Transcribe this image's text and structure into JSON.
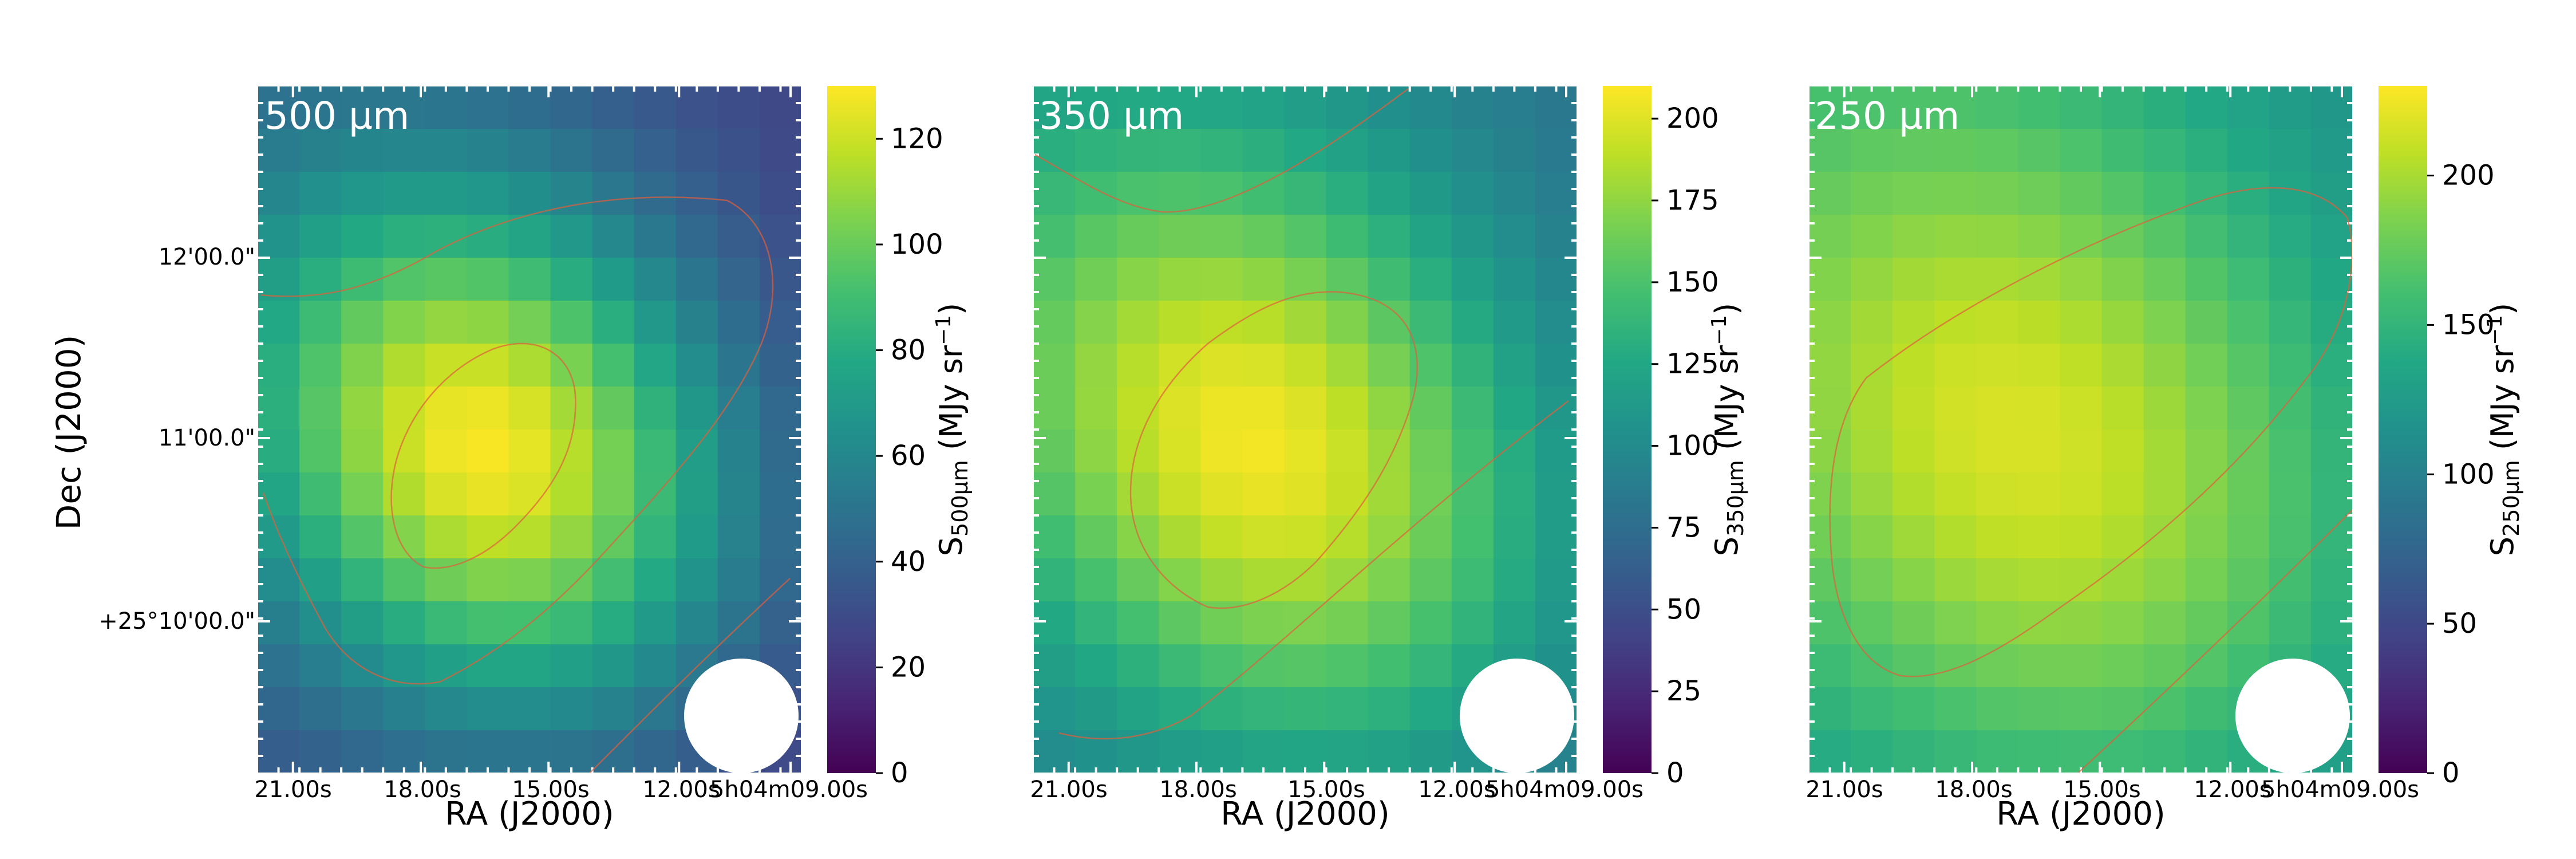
{
  "figure": {
    "ylabel": "Dec (J2000)",
    "xlabel": "RA (J2000)",
    "ra_ticks": [
      "21.00s",
      "18.00s",
      "15.00s",
      "12.00s",
      "5h04m09.00s"
    ],
    "dec_ticks": [
      "12'00.0\"",
      "11'00.0\"",
      "+25°10'00.0\""
    ]
  },
  "chart_data": [
    {
      "type": "heatmap",
      "title": "500 µm",
      "colorbar_label": "S",
      "colorbar_sub": "500µm",
      "colorbar_unit_pre": " (MJy sr",
      "colorbar_unit_exp": "−1",
      "colorbar_unit_post": ")",
      "colorbar_range": [
        0,
        130
      ],
      "colorbar_ticks": [
        "0",
        "20",
        "40",
        "60",
        "80",
        "100",
        "120"
      ],
      "colorbar_tick_values": [
        0,
        20,
        40,
        60,
        80,
        100,
        120
      ],
      "colormap": "viridis",
      "peak": 128,
      "peak_cell": [
        5,
        8
      ],
      "sigma": [
        3.8,
        4.6
      ],
      "tilt_deg": 40,
      "floor": 28,
      "gradient": [
        1.5,
        0.9
      ]
    },
    {
      "type": "heatmap",
      "title": "350 µm",
      "colorbar_label": "S",
      "colorbar_sub": "350µm",
      "colorbar_unit_pre": " (MJy sr",
      "colorbar_unit_exp": "−1",
      "colorbar_unit_post": ")",
      "colorbar_range": [
        0,
        210
      ],
      "colorbar_ticks": [
        "0",
        "25",
        "50",
        "75",
        "100",
        "125",
        "150",
        "175",
        "200"
      ],
      "colorbar_tick_values": [
        0,
        25,
        50,
        75,
        100,
        125,
        150,
        175,
        200
      ],
      "colormap": "viridis",
      "peak": 205,
      "peak_cell": [
        5,
        8
      ],
      "sigma": [
        4.3,
        5.6
      ],
      "tilt_deg": 40,
      "floor": 80,
      "gradient": [
        2.2,
        1.4
      ]
    },
    {
      "type": "heatmap",
      "title": "250 µm",
      "colorbar_label": "S",
      "colorbar_sub": "250µm",
      "colorbar_unit_pre": " (MJy sr",
      "colorbar_unit_exp": "−1",
      "colorbar_unit_post": ")",
      "colorbar_range": [
        0,
        230
      ],
      "colorbar_ticks": [
        "0",
        "50",
        "100",
        "150",
        "200"
      ],
      "colorbar_tick_values": [
        0,
        50,
        100,
        150,
        200
      ],
      "colormap": "viridis",
      "peak": 215,
      "peak_cell": [
        5,
        8
      ],
      "sigma": [
        5.2,
        6.6
      ],
      "tilt_deg": 40,
      "floor": 110,
      "gradient": [
        2.4,
        1.6
      ]
    }
  ]
}
